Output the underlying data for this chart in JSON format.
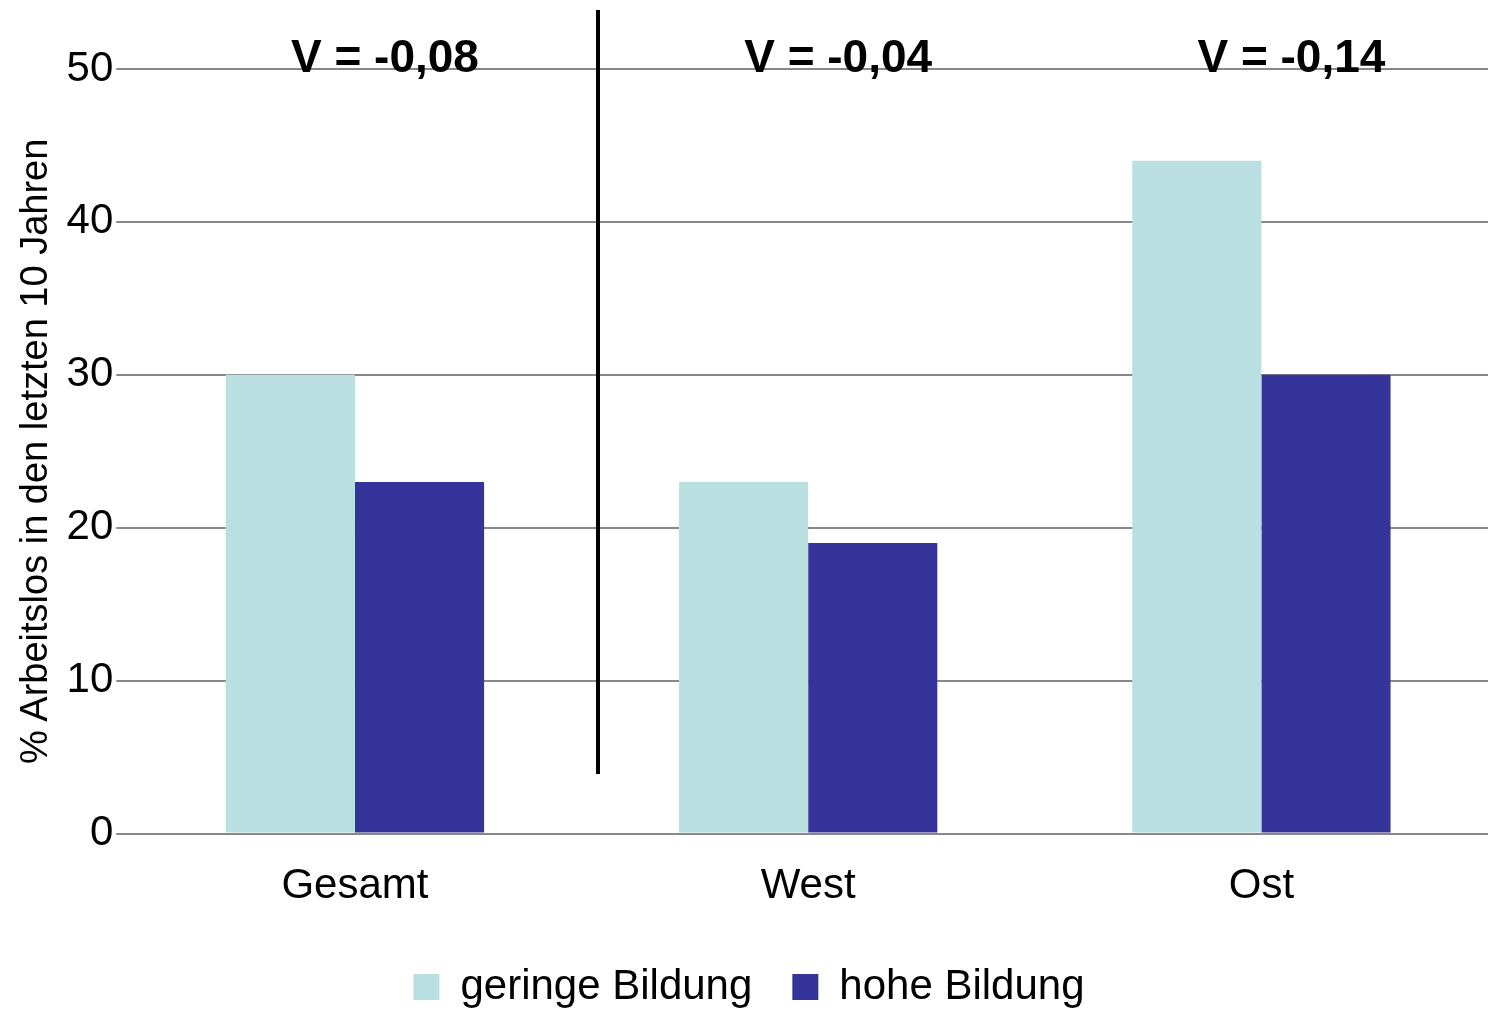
{
  "chart_data": {
    "type": "bar",
    "ylabel": "% Arbeitslos in den letzten 10 Jahren",
    "categories": [
      "Gesamt",
      "West",
      "Ost"
    ],
    "series": [
      {
        "name": "geringe Bildung",
        "color": "#b9dfe1",
        "values": [
          30,
          23,
          44
        ]
      },
      {
        "name": "hohe Bildung",
        "color": "#35349a",
        "values": [
          23,
          19,
          30
        ]
      }
    ],
    "ylim": [
      0,
      50
    ],
    "yticks": [
      0,
      10,
      20,
      30,
      40,
      50
    ],
    "grid": "y",
    "legend": "bottom",
    "annotations": [
      "V = -0,08",
      "V = -0,04",
      "V = -0,14"
    ]
  }
}
